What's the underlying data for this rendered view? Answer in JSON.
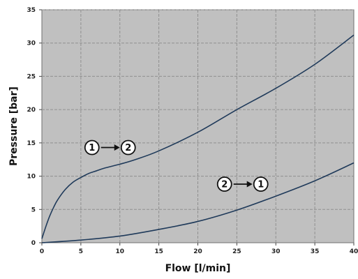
{
  "chart_data": {
    "type": "line",
    "xlabel": "Flow [l/min]",
    "ylabel": "Pressure [bar]",
    "xlim": [
      0,
      40
    ],
    "ylim": [
      0,
      35
    ],
    "xticks": [
      0,
      5,
      10,
      15,
      20,
      25,
      30,
      35,
      40
    ],
    "yticks": [
      0,
      5,
      10,
      15,
      20,
      25,
      30,
      35
    ],
    "grid": true,
    "plot_background": "#c0c0c0",
    "grid_color": "#8f8f8f",
    "line_color": "#1f3a5a",
    "series": [
      {
        "x": [
          0,
          0.5,
          1,
          1.5,
          2,
          3,
          4,
          5,
          6,
          7,
          8,
          10,
          12,
          15,
          20,
          25,
          30,
          35,
          40
        ],
        "y": [
          0.6,
          2.4,
          4.0,
          5.3,
          6.4,
          8.0,
          9.1,
          9.8,
          10.4,
          10.8,
          11.2,
          11.8,
          12.5,
          13.8,
          16.6,
          20.0,
          23.2,
          26.8,
          31.2
        ]
      },
      {
        "x": [
          0,
          5,
          10,
          15,
          20,
          25,
          30,
          35,
          40
        ],
        "y": [
          0,
          0.4,
          1.0,
          2.0,
          3.2,
          4.9,
          7.0,
          9.3,
          12.0
        ]
      }
    ],
    "annotations": [
      {
        "from": "1",
        "to": "2",
        "x": 10,
        "y": 14.3
      },
      {
        "from": "2",
        "to": "1",
        "x": 27,
        "y": 8.8
      }
    ]
  }
}
